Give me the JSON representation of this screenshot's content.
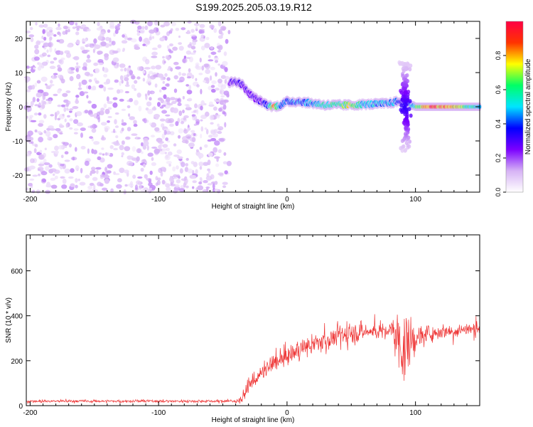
{
  "title": "S199.2025.205.03.19.R12",
  "chart_data": [
    {
      "type": "heatmap",
      "xlabel": "Height of straight line (km)",
      "ylabel": "Frequency (Hz)",
      "xlim": [
        -203,
        150
      ],
      "ylim": [
        -25,
        25
      ],
      "xticks": [
        -200,
        -100,
        0,
        100
      ],
      "yticks": [
        -20,
        -10,
        0,
        10,
        20
      ],
      "colorbar": {
        "label": "Normalized spectral amplitude",
        "range": [
          0,
          1
        ],
        "ticks": [
          0.0,
          0.2,
          0.4,
          0.6,
          0.8
        ],
        "colors": [
          "#ffffff",
          "#d6b2f5",
          "#7b00ff",
          "#0000ff",
          "#00e5ff",
          "#00ff66",
          "#ffff00",
          "#ff3300",
          "#ff0044"
        ]
      },
      "noise_region": {
        "x_range": [
          -203,
          -45
        ],
        "y_range": [
          -25,
          25
        ],
        "typical_amplitude": 0.1
      },
      "ridge": {
        "x": [
          -45,
          -40,
          -35,
          -30,
          -25,
          -20,
          -15,
          -10,
          -5,
          0,
          10,
          20,
          30,
          40,
          50,
          60,
          70,
          80,
          85,
          90,
          95,
          100,
          110,
          120,
          130,
          140,
          150
        ],
        "frequency": [
          7,
          7.5,
          6.5,
          4,
          2.5,
          1.5,
          0.5,
          0,
          0.5,
          1.5,
          1.5,
          1,
          0.5,
          0.5,
          0.5,
          0.7,
          0.8,
          1,
          1.5,
          1.5,
          1,
          0,
          0,
          0,
          0,
          0,
          0
        ],
        "amplitude": [
          0.25,
          0.35,
          0.3,
          0.3,
          0.3,
          0.3,
          0.4,
          0.85,
          0.45,
          0.45,
          0.45,
          0.5,
          0.6,
          0.6,
          0.75,
          0.5,
          0.5,
          0.5,
          0.45,
          0.35,
          0.4,
          0.6,
          0.95,
          0.85,
          0.85,
          0.6,
          0.5
        ]
      },
      "spread_features": [
        {
          "x_center": 92,
          "frequency_range": [
            -13,
            13
          ]
        }
      ]
    },
    {
      "type": "line",
      "xlabel": "Height of straight line (km)",
      "ylabel": "SNR (10 * v/v)",
      "xlim": [
        -203,
        150
      ],
      "ylim": [
        0,
        760
      ],
      "xticks": [
        -200,
        -100,
        0,
        100
      ],
      "yticks": [
        0,
        200,
        400,
        600
      ],
      "color": "#ee3333",
      "x_start": -203,
      "x_step": 0.3,
      "envelope": {
        "x": [
          -203,
          -40,
          -35,
          -30,
          -20,
          -10,
          0,
          10,
          20,
          30,
          40,
          50,
          60,
          70,
          80,
          85,
          90,
          95,
          100,
          110,
          120,
          130,
          140,
          150
        ],
        "mean": [
          20,
          20,
          30,
          90,
          140,
          190,
          220,
          250,
          270,
          290,
          310,
          320,
          330,
          330,
          335,
          320,
          250,
          270,
          300,
          320,
          330,
          335,
          340,
          340
        ],
        "spread": [
          12,
          12,
          40,
          60,
          70,
          80,
          80,
          80,
          80,
          90,
          100,
          90,
          80,
          70,
          70,
          200,
          300,
          250,
          120,
          70,
          60,
          60,
          60,
          60
        ]
      }
    }
  ]
}
